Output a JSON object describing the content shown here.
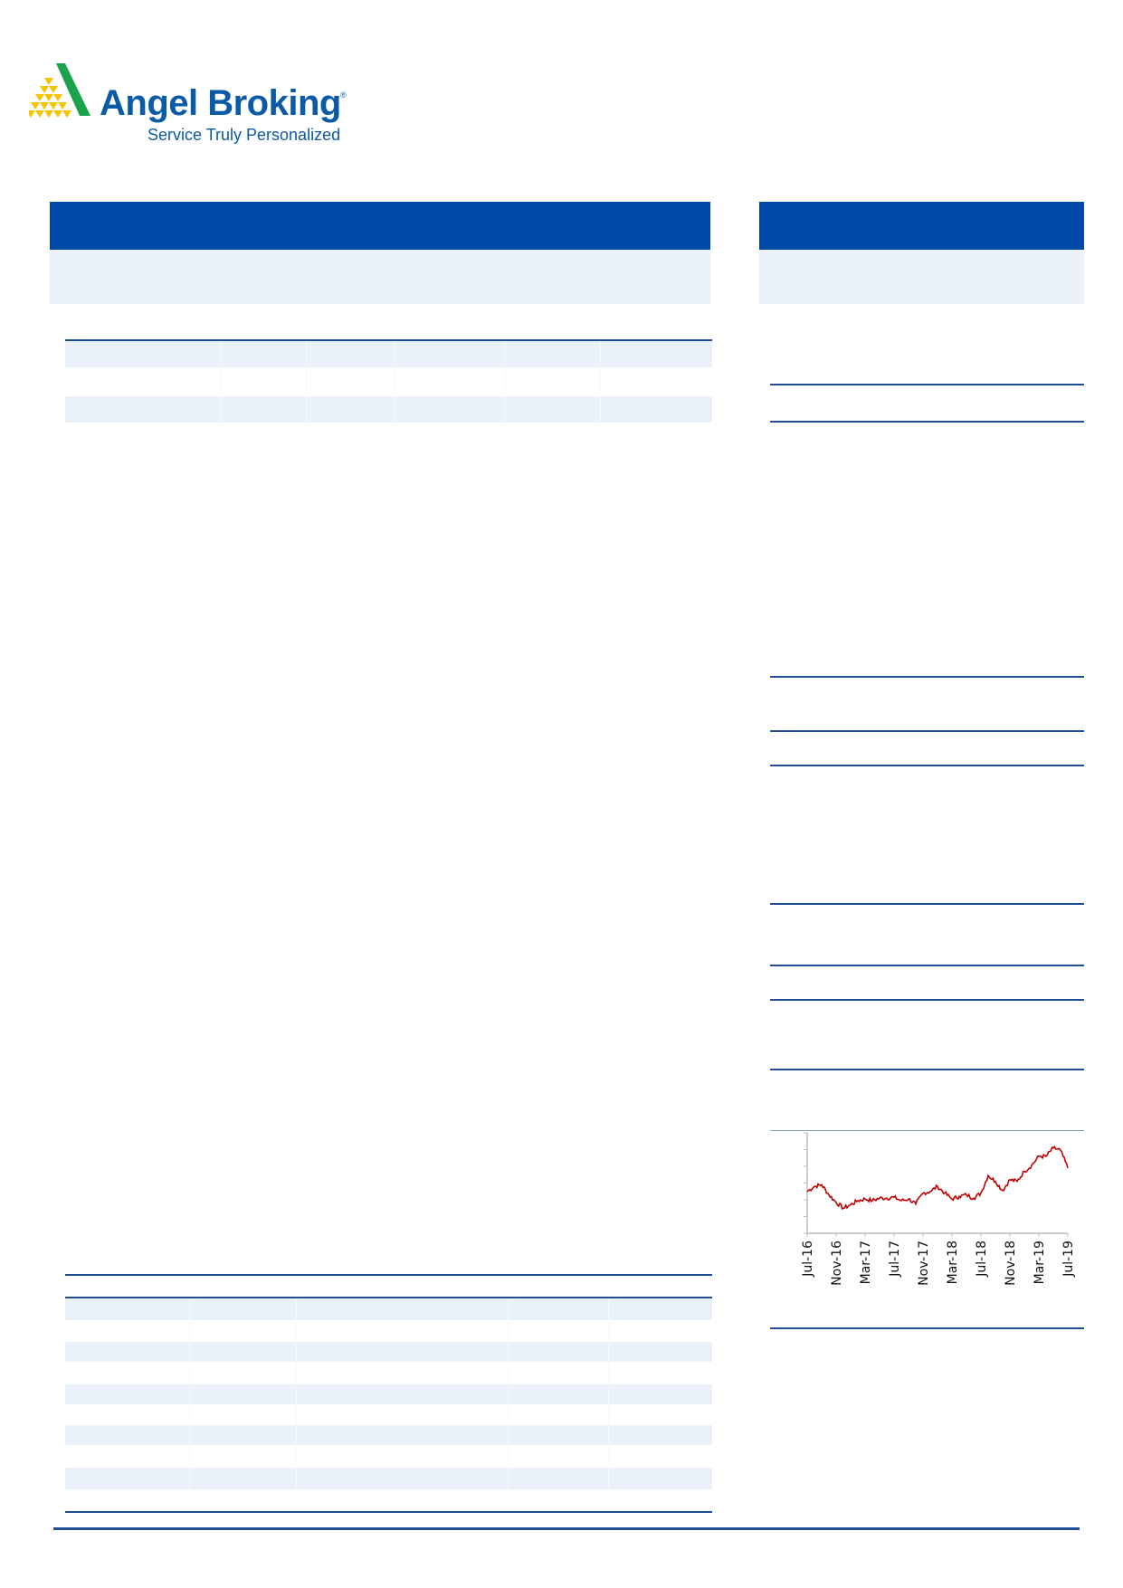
{
  "logo": {
    "name": "Angel Broking",
    "tagline": "Service Truly Personalized",
    "mark": "®",
    "colors": {
      "green": "#1aa34a",
      "yellow": "#f5c400",
      "blue": "#0a5aa6"
    }
  },
  "colors": {
    "header": "#0049a8",
    "band": "#eaf1f8",
    "rule": "#1f4e96",
    "series": "#c00000"
  },
  "chart_data": {
    "type": "line",
    "title": "",
    "xlabel": "",
    "ylabel": "",
    "x_ticks": [
      "Jul-16",
      "Nov-16",
      "Mar-17",
      "Jul-17",
      "Nov-17",
      "Mar-18",
      "Jul-18",
      "Nov-18",
      "Mar-19",
      "Jul-19"
    ],
    "y_ticks_count": 7,
    "y_tick_labels_shown": false,
    "ylim": [
      0,
      6
    ],
    "grid": false,
    "x": [
      "Jul-16",
      "Aug-16",
      "Sep-16",
      "Oct-16",
      "Nov-16",
      "Dec-16",
      "Jan-17",
      "Feb-17",
      "Mar-17",
      "Apr-17",
      "May-17",
      "Jun-17",
      "Jul-17",
      "Aug-17",
      "Sep-17",
      "Oct-17",
      "Nov-17",
      "Dec-17",
      "Jan-18",
      "Feb-18",
      "Mar-18",
      "Apr-18",
      "May-18",
      "Jun-18",
      "Jul-18",
      "Aug-18",
      "Sep-18",
      "Oct-18",
      "Nov-18",
      "Dec-18",
      "Jan-19",
      "Feb-19",
      "Mar-19",
      "Apr-19",
      "May-19",
      "Jun-19",
      "Jul-19"
    ],
    "series": [
      {
        "values": [
          2.5,
          2.8,
          2.9,
          2.3,
          1.85,
          1.5,
          1.7,
          1.95,
          2.05,
          1.95,
          2.1,
          2.1,
          2.15,
          1.95,
          2.05,
          1.75,
          2.4,
          2.5,
          2.8,
          2.4,
          2.05,
          2.2,
          2.3,
          2.1,
          2.4,
          3.45,
          3.1,
          2.55,
          3.2,
          3.1,
          3.7,
          4.05,
          4.6,
          4.6,
          5.1,
          4.95,
          3.9
        ],
        "color": "#c00000"
      }
    ]
  }
}
